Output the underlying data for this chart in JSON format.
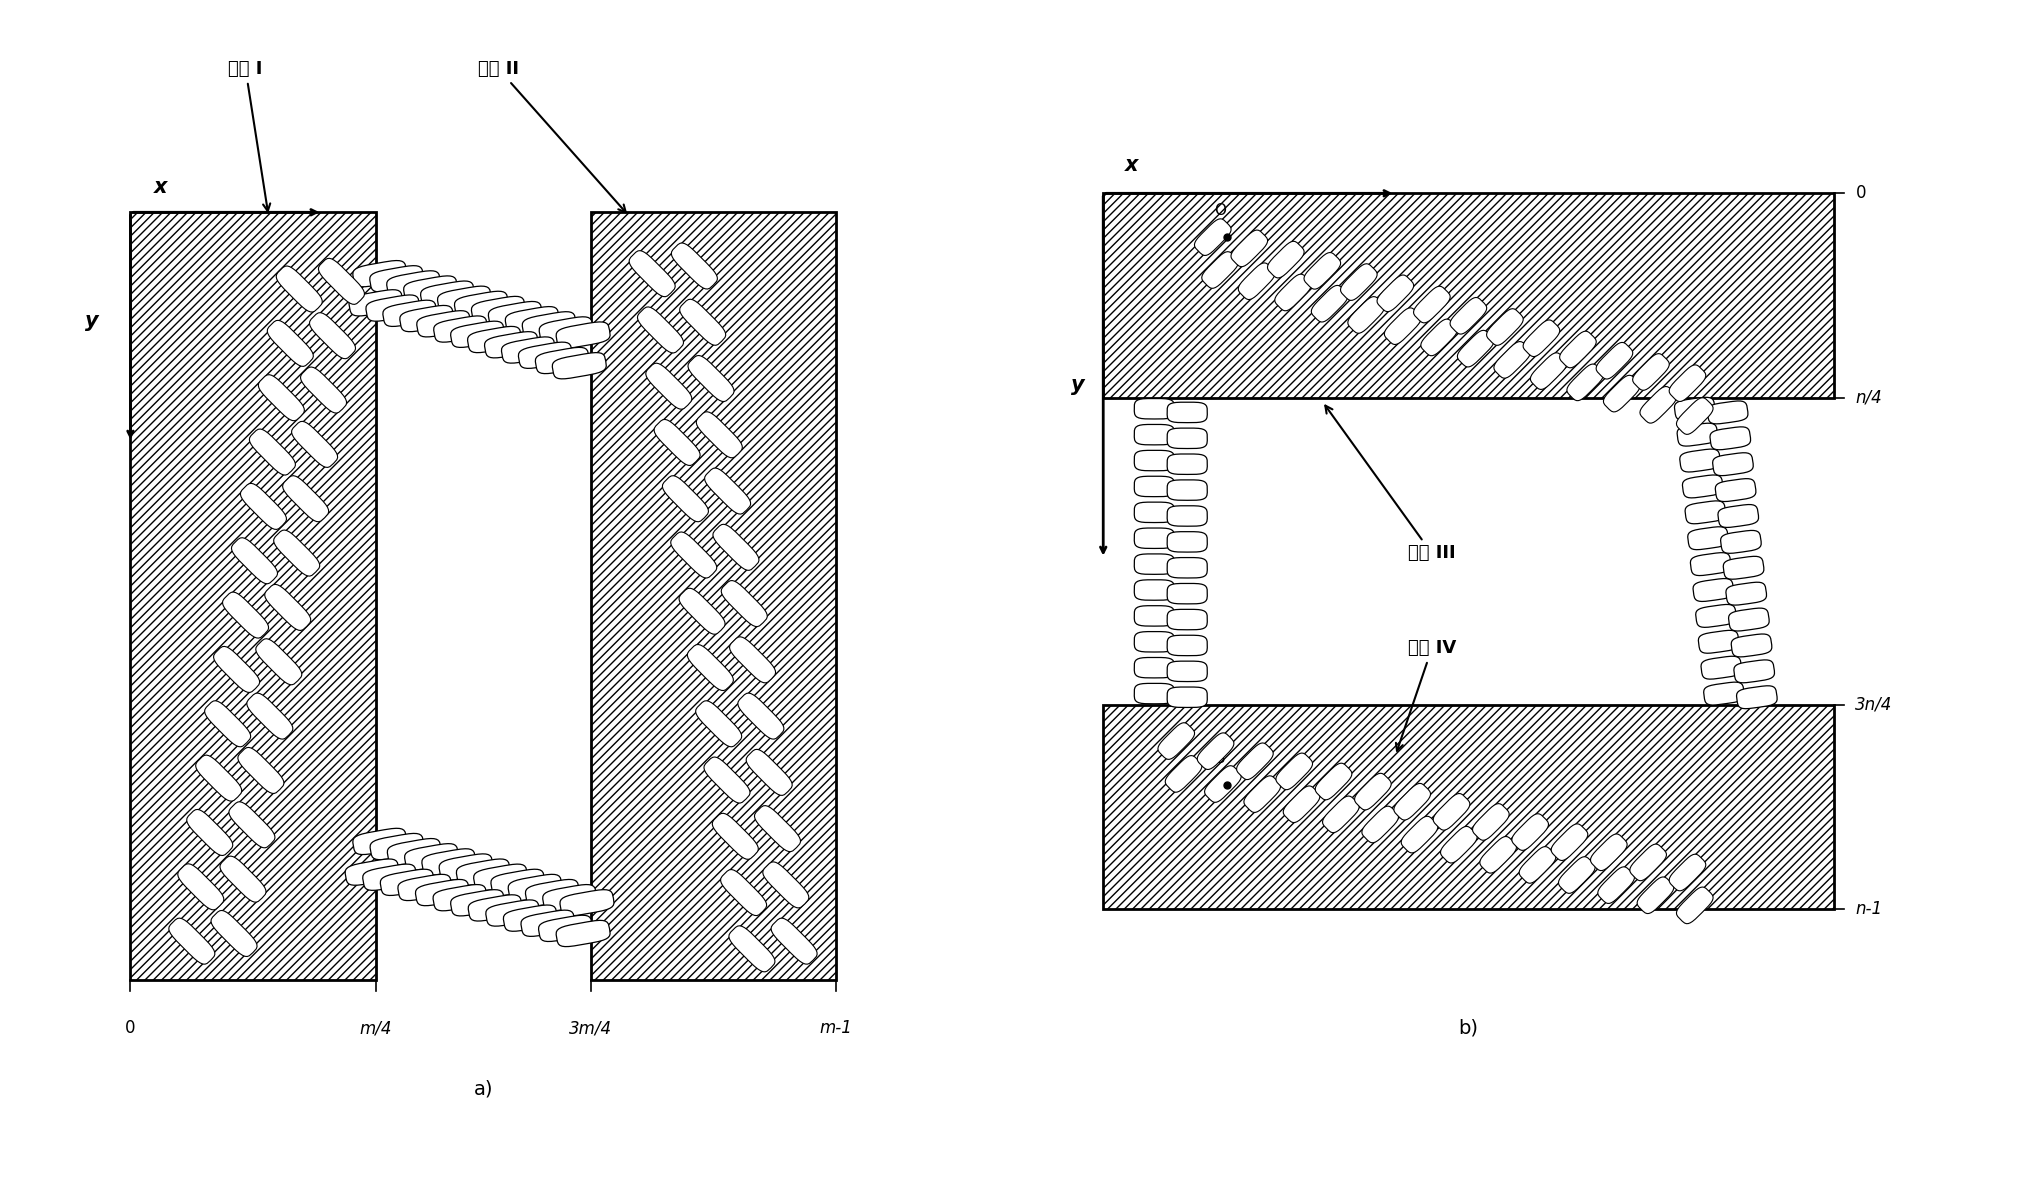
{
  "label_zone1": "区域 I",
  "label_zone2": "区域 II",
  "label_zone3": "区域 III",
  "label_zone4": "区域 IV",
  "label_x": "x",
  "label_y": "y",
  "title_a": "a)",
  "title_b": "b)",
  "ax_labels_a_x": [
    "0",
    "m/4",
    "3m/4",
    "m-1"
  ],
  "ax_labels_b_y": [
    "0",
    "n/4",
    "3n/4",
    "n-1"
  ]
}
